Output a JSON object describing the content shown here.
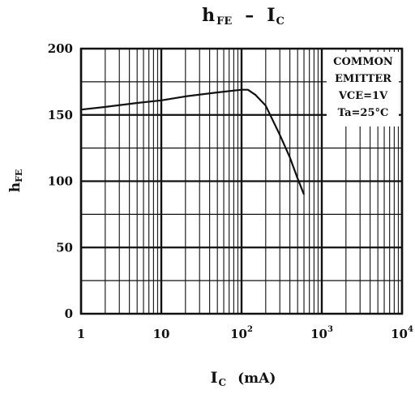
{
  "chart_data": {
    "type": "line",
    "title": {
      "main": "h",
      "main_sub": "FE",
      "dash": "–",
      "rhs": "I",
      "rhs_sub": "C"
    },
    "xlabel": {
      "main": "I",
      "sub": "C",
      "unit": "(mA)"
    },
    "ylabel": {
      "main": "h",
      "sub": "FE"
    },
    "xscale": "log",
    "xlim": [
      1,
      10000
    ],
    "ylim": [
      0,
      200
    ],
    "grid": true,
    "x_ticks": [
      {
        "value": 1,
        "base": "1",
        "exp": ""
      },
      {
        "value": 10,
        "base": "10",
        "exp": ""
      },
      {
        "value": 100,
        "base": "10",
        "exp": "2"
      },
      {
        "value": 1000,
        "base": "10",
        "exp": "3"
      },
      {
        "value": 10000,
        "base": "10",
        "exp": "4"
      }
    ],
    "y_ticks": [
      {
        "value": 0,
        "label": "0"
      },
      {
        "value": 50,
        "label": "50"
      },
      {
        "value": 100,
        "label": "100"
      },
      {
        "value": 150,
        "label": "150"
      },
      {
        "value": 200,
        "label": "200"
      }
    ],
    "annotation": [
      "COMMON",
      "EMITTER",
      "VCE=1V",
      "Ta=25°C"
    ],
    "series": [
      {
        "x": [
          1,
          2,
          5,
          10,
          20,
          50,
          100,
          120,
          150,
          200,
          300,
          400,
          500,
          600
        ],
        "y": [
          154,
          156,
          159,
          161,
          164,
          167,
          169,
          169,
          165,
          157,
          135,
          118,
          102,
          90
        ]
      }
    ]
  }
}
